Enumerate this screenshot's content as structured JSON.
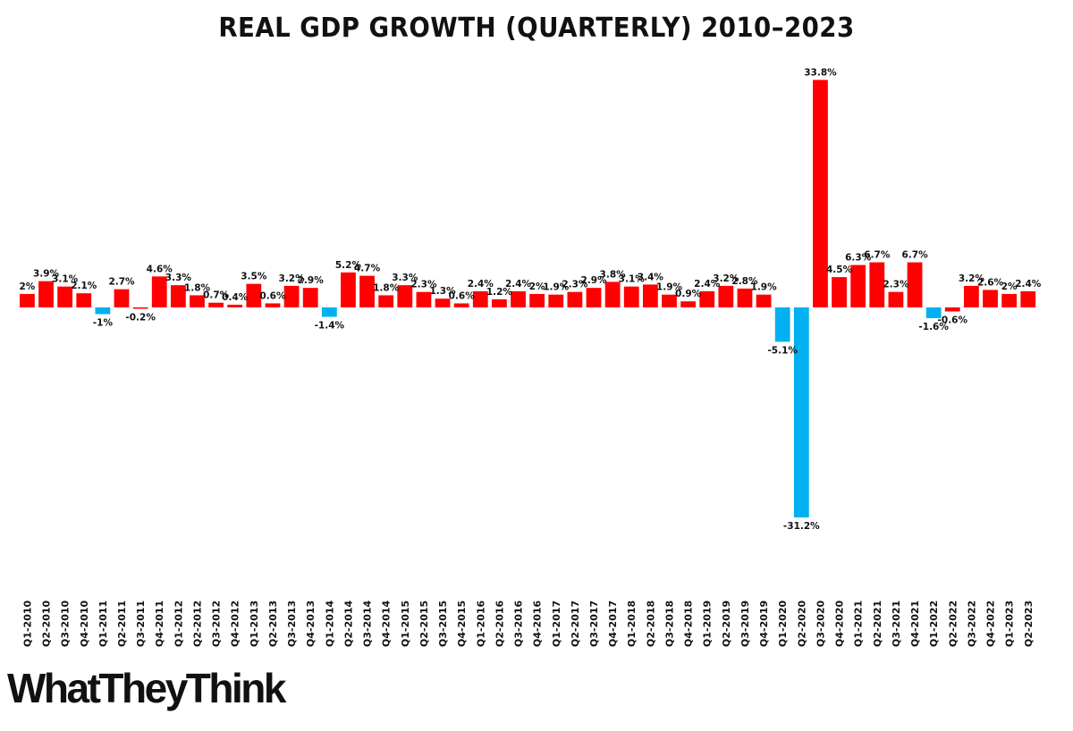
{
  "chart_data": {
    "type": "bar",
    "title": "REAL GDP GROWTH (QUARTERLY) 2010–2023",
    "xlabel": "",
    "ylabel": "",
    "categories": [
      "Q1-2010",
      "Q2-2010",
      "Q3-2010",
      "Q4-2010",
      "Q1-2011",
      "Q2-2011",
      "Q3-2011",
      "Q4-2011",
      "Q1-2012",
      "Q2-2012",
      "Q3-2012",
      "Q4-2012",
      "Q1-2013",
      "Q2-2013",
      "Q3-2013",
      "Q4-2013",
      "Q1-2014",
      "Q2-2014",
      "Q3-2014",
      "Q4-2014",
      "Q1-2015",
      "Q2-2015",
      "Q3-2015",
      "Q4-2015",
      "Q1-2016",
      "Q2-2016",
      "Q3-2016",
      "Q4-2016",
      "Q1-2017",
      "Q2-2017",
      "Q3-2017",
      "Q4-2017",
      "Q1-2018",
      "Q2-2018",
      "Q3-2018",
      "Q4-2018",
      "Q1-2019",
      "Q2-2019",
      "Q3-2019",
      "Q4-2019",
      "Q1-2020",
      "Q2-2020",
      "Q3-2020",
      "Q4-2020",
      "Q1-2021",
      "Q2-2021",
      "Q3-2021",
      "Q4-2021",
      "Q1-2022",
      "Q2-2022",
      "Q3-2022",
      "Q4-2022",
      "Q1-2023",
      "Q2-2023"
    ],
    "values": [
      2,
      3.9,
      3.1,
      2.1,
      -1,
      2.7,
      -0.2,
      4.6,
      3.3,
      1.8,
      0.7,
      0.4,
      3.5,
      0.6,
      3.2,
      2.9,
      -1.4,
      5.2,
      4.7,
      1.8,
      3.3,
      2.3,
      1.3,
      0.6,
      2.4,
      1.2,
      2.4,
      2,
      1.9,
      2.3,
      2.9,
      3.8,
      3.1,
      3.4,
      1.9,
      0.9,
      2.4,
      3.2,
      2.8,
      1.9,
      -5.1,
      -31.2,
      33.8,
      4.5,
      6.3,
      6.7,
      2.3,
      6.7,
      -1.6,
      -0.6,
      3.2,
      2.6,
      2,
      2.4
    ],
    "labels": [
      "2%",
      "3.9%",
      "3.1%",
      "2.1%",
      "-1%",
      "2.7%",
      "-0.2%",
      "4.6%",
      "3.3%",
      "1.8%",
      "0.7%",
      "0.4%",
      "3.5%",
      "0.6%",
      "3.2%",
      "2.9%",
      "-1.4%",
      "5.2%",
      "4.7%",
      "1.8%",
      "3.3%",
      "2.3%",
      "1.3%",
      "0.6%",
      "2.4%",
      "1.2%",
      "2.4%",
      "2%",
      "1.9%",
      "2.3%",
      "2.9%",
      "3.8%",
      "3.1%",
      "3.4%",
      "1.9%",
      "0.9%",
      "2.4%",
      "3.2%",
      "2.8%",
      "1.9%",
      "-5.1%",
      "-31.2%",
      "33.8%",
      "4.5%",
      "6.3%",
      "6.7%",
      "2.3%",
      "6.7%",
      "-1.6%",
      "-0.6%",
      "3.2%",
      "2.6%",
      "2%",
      "2.4%"
    ],
    "ylim": [
      -31.2,
      33.8
    ],
    "grid": false,
    "legend": "none",
    "colors": {
      "positive": "#ff0000",
      "negative": "#00b0f0",
      "near_zero_negative": "#ff0000"
    }
  },
  "branding": {
    "logo_text": "WhatTheyThink"
  }
}
